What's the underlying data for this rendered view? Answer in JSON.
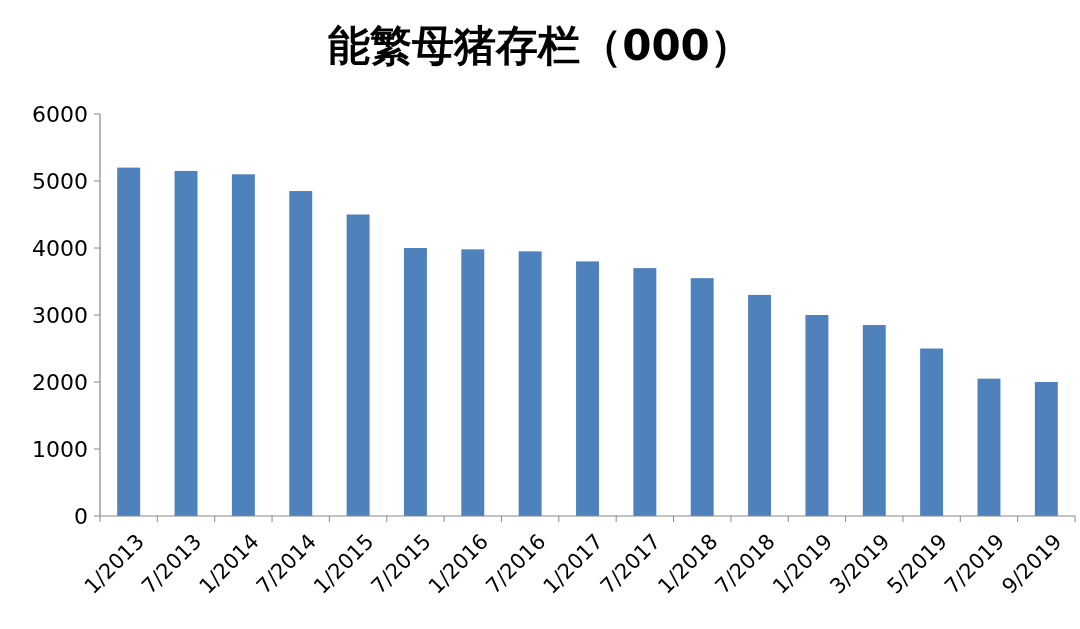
{
  "chart_data": {
    "type": "bar",
    "title": "能繁母猪存栏（000）",
    "categories": [
      "1/2013",
      "7/2013",
      "1/2014",
      "7/2014",
      "1/2015",
      "7/2015",
      "1/2016",
      "7/2016",
      "1/2017",
      "7/2017",
      "1/2018",
      "7/2018",
      "1/2019",
      "3/2019",
      "5/2019",
      "7/2019",
      "9/2019"
    ],
    "values": [
      5200,
      5150,
      5100,
      4850,
      4500,
      4000,
      3980,
      3950,
      3800,
      3700,
      3550,
      3300,
      3000,
      2850,
      2500,
      2050,
      2000
    ],
    "color": "#4f81bd",
    "ylim": [
      0,
      6000
    ],
    "yticks": [
      0,
      1000,
      2000,
      3000,
      4000,
      5000,
      6000
    ],
    "grid": false
  }
}
